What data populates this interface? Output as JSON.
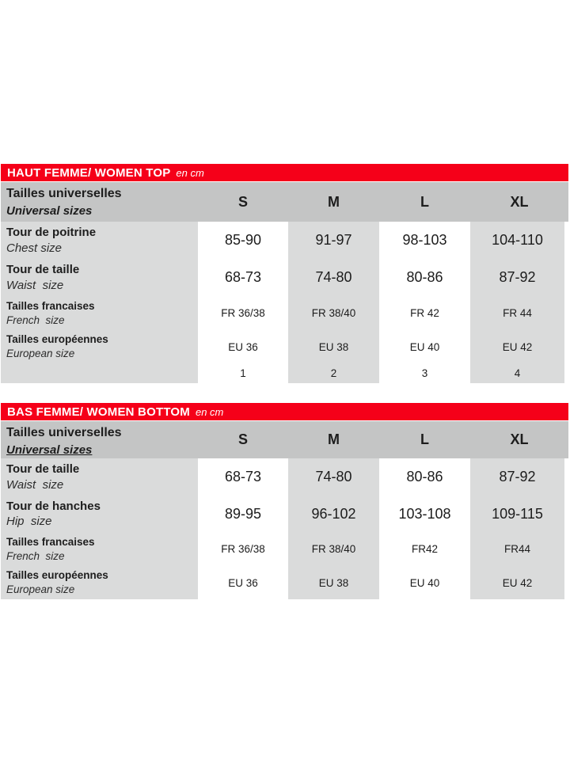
{
  "colors": {
    "accent_red": "#f50019",
    "header_gray": "#c4c5c5",
    "cell_gray": "#dadbdb"
  },
  "tables": [
    {
      "title": "HAUT FEMME/ WOMEN TOP",
      "unit": "en cm",
      "header": {
        "fr": "Tailles universelles",
        "en": "Universal sizes",
        "sizes": [
          "S",
          "M",
          "L",
          "XL"
        ]
      },
      "rows": [
        {
          "fr": "Tour de poitrine",
          "en": "Chest size",
          "values": [
            "85-90",
            "91-97",
            "98-103",
            "104-110"
          ]
        },
        {
          "fr": "Tour de taille",
          "en": "Waist  size",
          "values": [
            "68-73",
            "74-80",
            "80-86",
            "87-92"
          ]
        },
        {
          "fr": "Tailles francaises",
          "en": "French  size",
          "values": [
            "FR 36/38",
            "FR 38/40",
            "FR 42",
            "FR 44"
          ]
        },
        {
          "fr": "Tailles européennes",
          "en": "European size",
          "values": [
            "EU 36",
            "EU 38",
            "EU 40",
            "EU 42"
          ]
        }
      ],
      "numbers": [
        "1",
        "2",
        "3",
        "4"
      ]
    },
    {
      "title": "BAS FEMME/ WOMEN BOTTOM",
      "unit": "en cm",
      "header": {
        "fr": "Tailles universelles",
        "en": "Universal sizes",
        "sizes": [
          "S",
          "M",
          "L",
          "XL"
        ]
      },
      "rows": [
        {
          "fr": "Tour de taille",
          "en": "Waist  size",
          "values": [
            "68-73",
            "74-80",
            "80-86",
            "87-92"
          ]
        },
        {
          "fr": "Tour de hanches",
          "en": "Hip  size",
          "values": [
            "89-95",
            "96-102",
            "103-108",
            "109-115"
          ]
        },
        {
          "fr": "Tailles francaises",
          "en": "French  size",
          "values": [
            "FR 36/38",
            "FR 38/40",
            "FR42",
            "FR44"
          ]
        },
        {
          "fr": "Tailles européennes",
          "en": "European size",
          "values": [
            "EU 36",
            "EU 38",
            "EU 40",
            "EU 42"
          ]
        }
      ]
    }
  ]
}
